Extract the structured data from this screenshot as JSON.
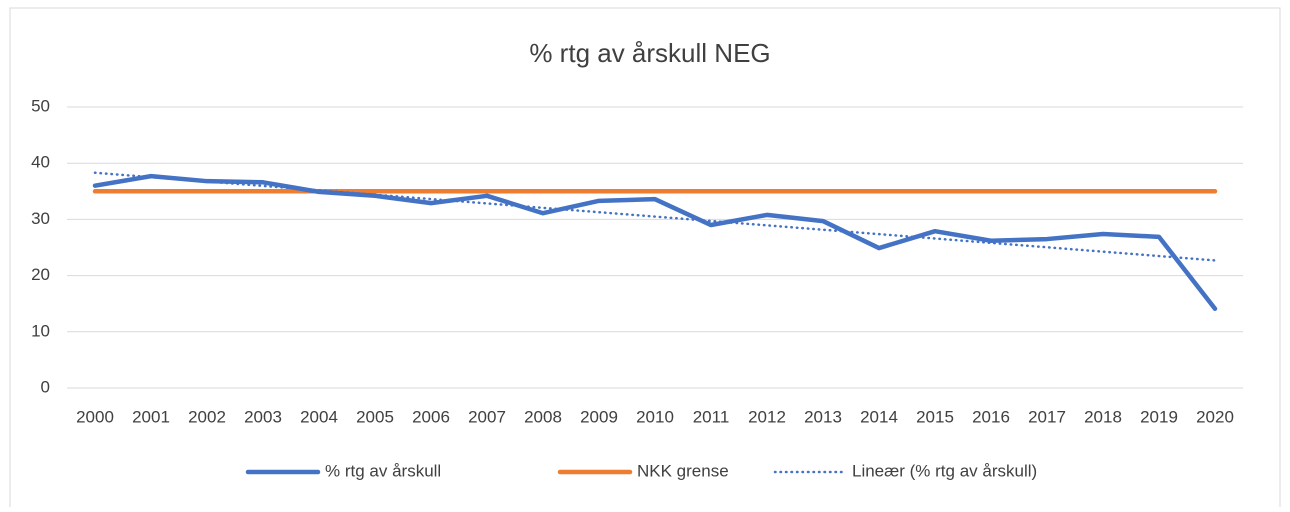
{
  "chart_data": {
    "type": "line",
    "title": "% rtg av årskull NEG",
    "categories": [
      "2000",
      "2001",
      "2002",
      "2003",
      "2004",
      "2005",
      "2006",
      "2007",
      "2008",
      "2009",
      "2010",
      "2011",
      "2012",
      "2013",
      "2014",
      "2015",
      "2016",
      "2017",
      "2018",
      "2019",
      "2020"
    ],
    "series": [
      {
        "name": "% rtg av årskull",
        "color": "#4472c4",
        "line_style": "solid",
        "values": [
          36,
          37.7,
          36.8,
          36.6,
          34.9,
          34.2,
          32.9,
          34.2,
          31.1,
          33.3,
          33.6,
          29,
          30.8,
          29.7,
          24.9,
          27.9,
          26.2,
          26.5,
          27.4,
          26.9,
          14.1
        ]
      },
      {
        "name": "NKK grense",
        "color": "#ed7d31",
        "line_style": "solid",
        "values": [
          35,
          35,
          35,
          35,
          35,
          35,
          35,
          35,
          35,
          35,
          35,
          35,
          35,
          35,
          35,
          35,
          35,
          35,
          35,
          35,
          35
        ]
      },
      {
        "name": "Lineær (% rtg av årskull)",
        "color": "#4472c4",
        "line_style": "dotted",
        "values": [
          38.3,
          37.52,
          36.74,
          35.96,
          35.18,
          34.4,
          33.62,
          32.84,
          32.06,
          31.28,
          30.5,
          29.72,
          28.94,
          28.16,
          27.38,
          26.6,
          25.82,
          25.04,
          24.26,
          23.48,
          22.7
        ]
      }
    ],
    "ylim": [
      0,
      50
    ],
    "yticks": [
      0,
      10,
      20,
      30,
      40,
      50
    ],
    "grid": true,
    "legend": "bottom"
  }
}
